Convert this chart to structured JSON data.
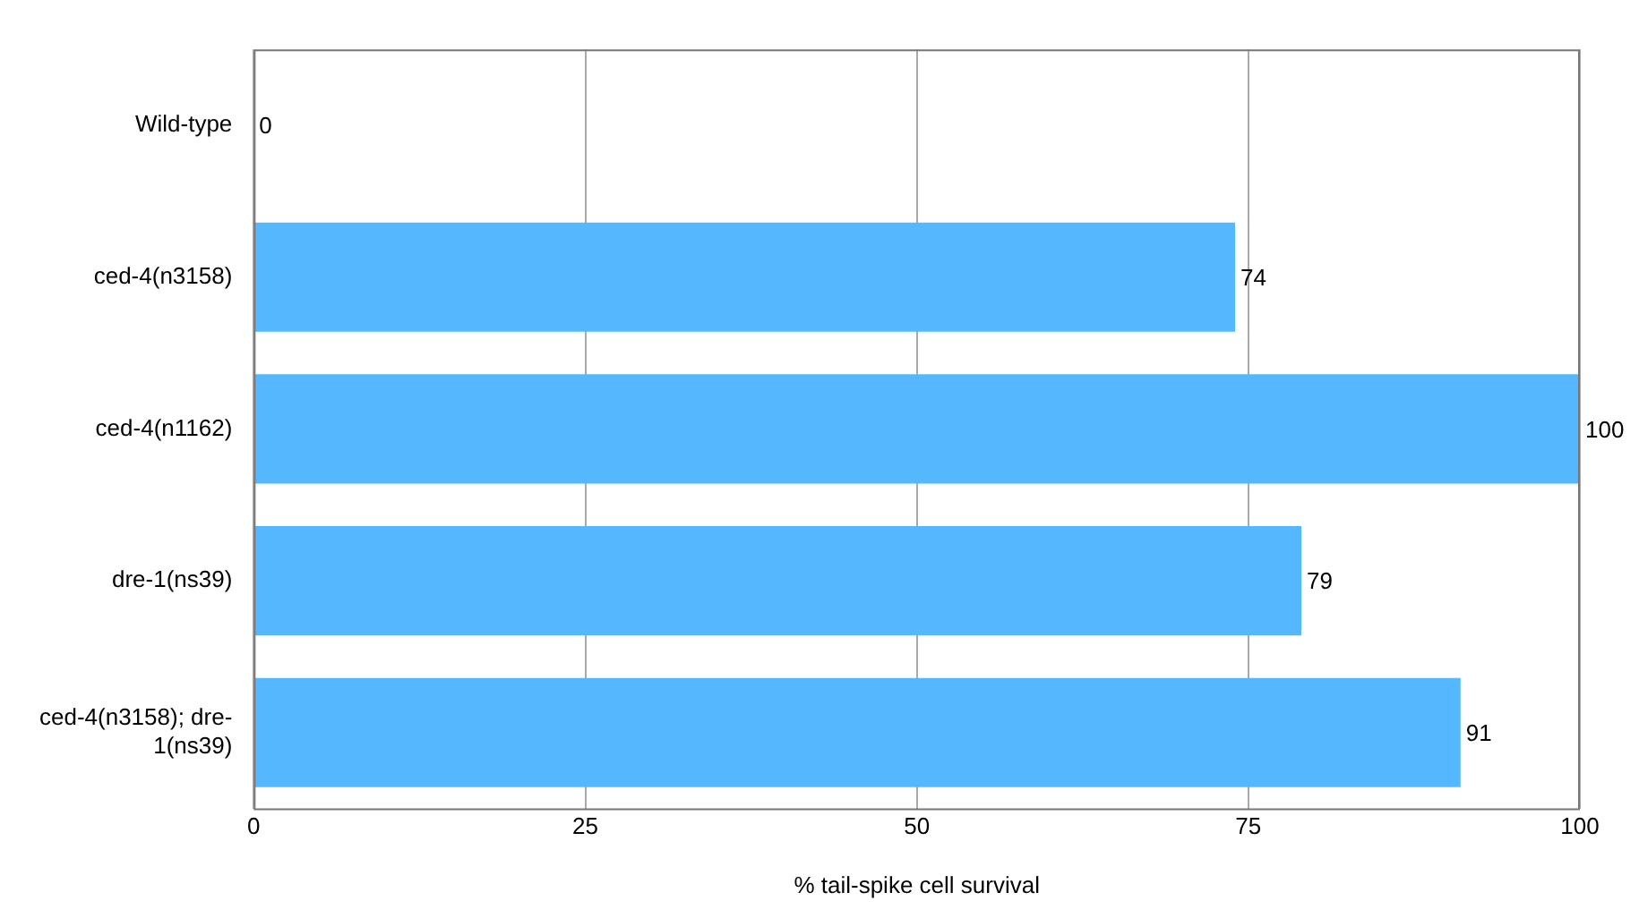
{
  "chart_data": {
    "type": "bar",
    "orientation": "horizontal",
    "categories": [
      "Wild-type",
      "ced-4(n3158)",
      "ced-4(n1162)",
      "dre-1(ns39)",
      "ced-4(n3158); dre-1(ns39)"
    ],
    "values": [
      0,
      74,
      100,
      79,
      91
    ],
    "color": "#55b8ff",
    "xlabel": "% tail-spike cell survival",
    "xlim": [
      0,
      100
    ],
    "xticks": [
      0,
      25,
      50,
      75,
      100
    ],
    "grid": "x",
    "data_labels": true,
    "legend": false
  }
}
